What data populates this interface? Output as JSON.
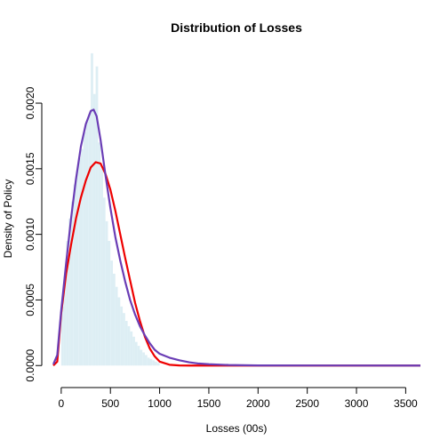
{
  "chart_data": {
    "type": "histogram+line",
    "title": "Distribution of Losses",
    "xlabel": "Losses (00s)",
    "ylabel": "Density of Policy",
    "xlim": [
      -80,
      3650
    ],
    "ylim": [
      -0.0001,
      0.0024
    ],
    "x_ticks": [
      0,
      500,
      1000,
      1500,
      2000,
      2500,
      3000,
      3500
    ],
    "y_ticks": [
      0.0,
      0.0005,
      0.001,
      0.0015,
      0.002
    ],
    "y_tick_labels": [
      "0.0000",
      "0.0005",
      "0.0010",
      "0.0015",
      "0.0020"
    ],
    "histogram": {
      "color": "#ddeef4",
      "bin_width": 25,
      "bins": [
        {
          "x0": 0,
          "y": 0.00045
        },
        {
          "x0": 25,
          "y": 0.00068
        },
        {
          "x0": 50,
          "y": 0.00095
        },
        {
          "x0": 75,
          "y": 0.00112
        },
        {
          "x0": 100,
          "y": 0.00125
        },
        {
          "x0": 125,
          "y": 0.00138
        },
        {
          "x0": 150,
          "y": 0.00148
        },
        {
          "x0": 175,
          "y": 0.00158
        },
        {
          "x0": 200,
          "y": 0.00165
        },
        {
          "x0": 225,
          "y": 0.00178
        },
        {
          "x0": 250,
          "y": 0.00186
        },
        {
          "x0": 275,
          "y": 0.00192
        },
        {
          "x0": 300,
          "y": 0.00238
        },
        {
          "x0": 325,
          "y": 0.00207
        },
        {
          "x0": 350,
          "y": 0.00228
        },
        {
          "x0": 375,
          "y": 0.0017
        },
        {
          "x0": 400,
          "y": 0.0015
        },
        {
          "x0": 425,
          "y": 0.00128
        },
        {
          "x0": 450,
          "y": 0.0011
        },
        {
          "x0": 475,
          "y": 0.00095
        },
        {
          "x0": 500,
          "y": 0.0008
        },
        {
          "x0": 525,
          "y": 0.0007
        },
        {
          "x0": 550,
          "y": 0.0006
        },
        {
          "x0": 575,
          "y": 0.00052
        },
        {
          "x0": 600,
          "y": 0.00045
        },
        {
          "x0": 625,
          "y": 0.0004
        },
        {
          "x0": 650,
          "y": 0.00034
        },
        {
          "x0": 675,
          "y": 0.0003
        },
        {
          "x0": 700,
          "y": 0.00026
        },
        {
          "x0": 725,
          "y": 0.00022
        },
        {
          "x0": 750,
          "y": 0.00018
        },
        {
          "x0": 775,
          "y": 0.00015
        },
        {
          "x0": 800,
          "y": 0.00012
        },
        {
          "x0": 825,
          "y": 0.0001
        },
        {
          "x0": 850,
          "y": 8e-05
        },
        {
          "x0": 875,
          "y": 6e-05
        },
        {
          "x0": 900,
          "y": 5e-05
        },
        {
          "x0": 925,
          "y": 4e-05
        },
        {
          "x0": 950,
          "y": 3e-05
        },
        {
          "x0": 975,
          "y": 2e-05
        }
      ]
    },
    "series": [
      {
        "color": "#ee0000",
        "points": [
          [
            -80,
            0.0
          ],
          [
            -40,
            3e-05
          ],
          [
            0,
            0.0004
          ],
          [
            50,
            0.0007
          ],
          [
            100,
            0.00092
          ],
          [
            150,
            0.00112
          ],
          [
            200,
            0.00128
          ],
          [
            250,
            0.00141
          ],
          [
            300,
            0.00151
          ],
          [
            350,
            0.00155
          ],
          [
            400,
            0.00154
          ],
          [
            450,
            0.00146
          ],
          [
            500,
            0.00134
          ],
          [
            550,
            0.00118
          ],
          [
            600,
            0.001
          ],
          [
            650,
            0.00082
          ],
          [
            700,
            0.00065
          ],
          [
            750,
            0.00048
          ],
          [
            800,
            0.00034
          ],
          [
            850,
            0.00022
          ],
          [
            900,
            0.00013
          ],
          [
            950,
            7e-05
          ],
          [
            1000,
            3e-05
          ],
          [
            1100,
            6e-06
          ],
          [
            1200,
            1e-06
          ],
          [
            1300,
            0.0
          ],
          [
            3650,
            0.0
          ]
        ]
      },
      {
        "color": "#6a3db5",
        "points": [
          [
            -80,
            1e-05
          ],
          [
            -40,
            8e-05
          ],
          [
            0,
            0.00042
          ],
          [
            50,
            0.00078
          ],
          [
            100,
            0.00112
          ],
          [
            150,
            0.00142
          ],
          [
            200,
            0.00167
          ],
          [
            250,
            0.00184
          ],
          [
            300,
            0.00194
          ],
          [
            330,
            0.00195
          ],
          [
            360,
            0.0019
          ],
          [
            400,
            0.00172
          ],
          [
            450,
            0.00145
          ],
          [
            500,
            0.0012
          ],
          [
            550,
            0.00098
          ],
          [
            600,
            0.0008
          ],
          [
            650,
            0.00064
          ],
          [
            700,
            0.0005
          ],
          [
            750,
            0.00039
          ],
          [
            800,
            0.0003
          ],
          [
            850,
            0.00023
          ],
          [
            900,
            0.00017
          ],
          [
            950,
            0.00012
          ],
          [
            1000,
            9e-05
          ],
          [
            1100,
            6e-05
          ],
          [
            1200,
            4e-05
          ],
          [
            1300,
            2.5e-05
          ],
          [
            1400,
            1.5e-05
          ],
          [
            1500,
            1e-05
          ],
          [
            1700,
            4e-06
          ],
          [
            2000,
            1e-06
          ],
          [
            3650,
            0.0
          ]
        ]
      }
    ],
    "grid": false,
    "legend": "none"
  }
}
